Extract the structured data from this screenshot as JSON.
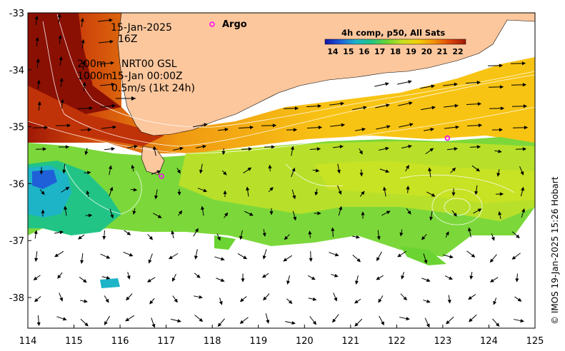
{
  "map": {
    "date": "15-Jan-2025",
    "hour": "16Z",
    "depth_shallow": "200m",
    "depth_deep": "1000m",
    "source": "NRT00 GSL",
    "analysis_time": "15-Jan 00:00Z",
    "vector_scale": "0.5m/s (1kt 24h)",
    "argo_label": "Argo",
    "credit": "© IMOS 19-Jan-2025 15:26 Hobart",
    "lon_range": [
      114,
      125
    ],
    "lat_range": [
      -38.5,
      -33
    ],
    "x_ticks": [
      "114",
      "115",
      "116",
      "117",
      "118",
      "119",
      "120",
      "121",
      "122",
      "123",
      "124",
      "125"
    ],
    "y_ticks": [
      "-33",
      "-34",
      "-35",
      "-36",
      "-37",
      "-38"
    ],
    "argo_floats": [
      {
        "lon": 116.9,
        "lat": -35.87
      },
      {
        "lon": 123.1,
        "lat": -35.2
      }
    ],
    "colors": {
      "land": "#fcc79d",
      "argo": "#ff00ff"
    }
  },
  "colorbar": {
    "title": "4h comp, p50, All Sats",
    "ticks": [
      "14",
      "15",
      "16",
      "17",
      "18",
      "19",
      "20",
      "21",
      "22"
    ],
    "range": [
      13.5,
      22.5
    ],
    "colors": [
      "#1414a8",
      "#1f5fd8",
      "#1eb4c8",
      "#22c486",
      "#6bd432",
      "#c8e020",
      "#f4d00a",
      "#f4940c",
      "#e04a0a",
      "#a01806"
    ]
  }
}
